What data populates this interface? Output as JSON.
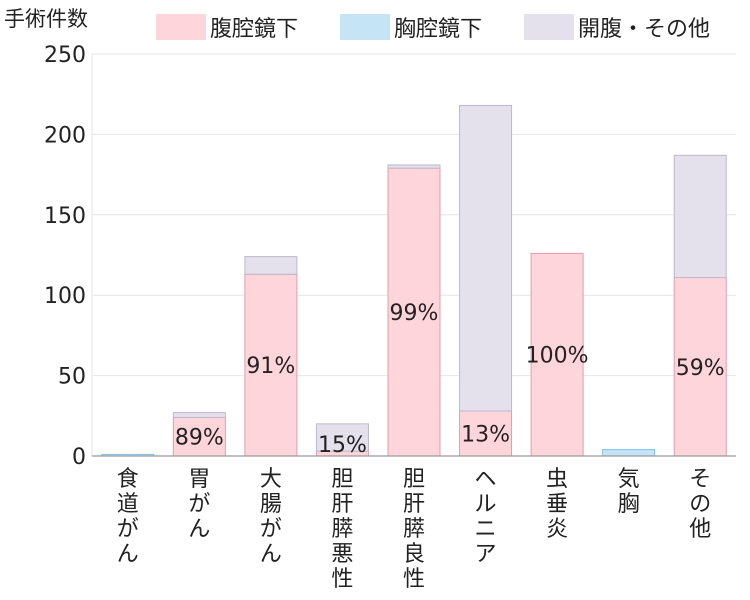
{
  "chart_data": {
    "type": "bar",
    "stacked": true,
    "ylabel": "手術件数",
    "ylim": [
      0,
      250
    ],
    "yticks": [
      0,
      50,
      100,
      150,
      200,
      250
    ],
    "grid": true,
    "legend_position": "top",
    "categories": [
      "食道がん",
      "胃がん",
      "大腸がん",
      "胆肝膵悪性",
      "胆肝膵良性",
      "ヘルニア",
      "虫垂炎",
      "気胸",
      "その他"
    ],
    "series": [
      {
        "name": "腹腔鏡下",
        "color": "#ffd5dc",
        "stroke": "#e39bb0",
        "values": [
          0,
          24,
          113,
          3,
          179,
          28,
          126,
          0,
          111
        ]
      },
      {
        "name": "胸腔鏡下",
        "color": "#c5e5f7",
        "stroke": "#7fc0e6",
        "values": [
          1,
          0,
          0,
          0,
          0,
          0,
          0,
          4,
          0
        ]
      },
      {
        "name": "開腹・その他",
        "color": "#e4e1ec",
        "stroke": "#bdb8cc",
        "values": [
          0,
          3,
          11,
          17,
          2,
          190,
          0,
          0,
          76
        ]
      }
    ],
    "data_labels": [
      "",
      "89%",
      "91%",
      "15%",
      "99%",
      "13%",
      "100%",
      "",
      "59%"
    ]
  }
}
